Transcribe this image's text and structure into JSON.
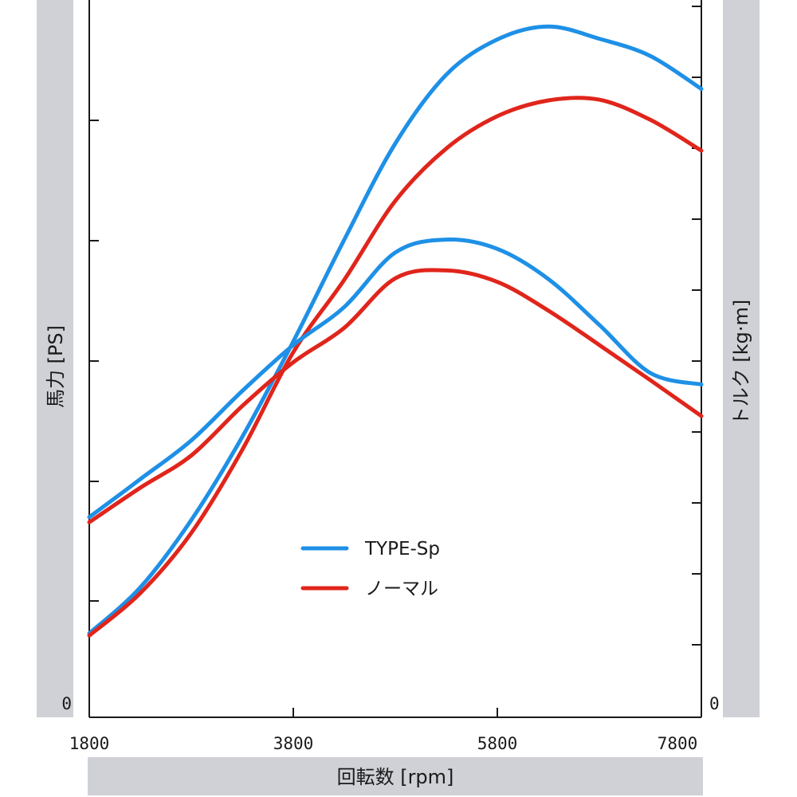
{
  "chart_data": {
    "type": "line",
    "xlabel": "回転数 [rpm]",
    "ylabel_left": "馬力 [PS]",
    "ylabel_right": "トルク [kg·m]",
    "x_ticks": [
      1800,
      3800,
      5800,
      7800
    ],
    "x_range": [
      1800,
      7800
    ],
    "y_left_range": [
      0,
      100
    ],
    "y_right_range": [
      0,
      100
    ],
    "y_left_zero_label": "0",
    "y_right_zero_label": "0",
    "colors": {
      "type_sp": "#1e90e6",
      "normal": "#e0251b"
    },
    "legend": {
      "position": "center-bottom",
      "entries": [
        {
          "name": "TYPE-Sp",
          "color": "#1e90e6"
        },
        {
          "name": "ノーマル",
          "color": "#e0251b"
        }
      ]
    },
    "series": [
      {
        "name": "TYPE-Sp",
        "quantity": "power",
        "axis": "left",
        "color": "#1e90e6",
        "x": [
          1800,
          2300,
          2800,
          3300,
          3800,
          4300,
          4800,
          5300,
          5800,
          6300,
          6800,
          7300,
          7800
        ],
        "y": [
          11.7,
          18.1,
          27.5,
          39.1,
          52.4,
          66.6,
          80.0,
          89.6,
          94.5,
          96.3,
          94.6,
          92.2,
          87.6
        ]
      },
      {
        "name": "ノーマル",
        "quantity": "power",
        "axis": "left",
        "color": "#e0251b",
        "x": [
          1800,
          2300,
          2800,
          3300,
          3800,
          4300,
          4800,
          5300,
          5800,
          6300,
          6800,
          7300,
          7800
        ],
        "y": [
          11.4,
          17.3,
          25.7,
          37.3,
          50.9,
          61.0,
          72.0,
          79.3,
          83.8,
          86.0,
          86.1,
          83.3,
          79.0
        ]
      },
      {
        "name": "TYPE-Sp",
        "quantity": "torque",
        "axis": "right",
        "color": "#1e90e6",
        "x": [
          1800,
          2300,
          2800,
          3300,
          3800,
          4300,
          4800,
          5300,
          5800,
          6300,
          6800,
          7300,
          7800
        ],
        "y": [
          27.9,
          33.2,
          38.6,
          45.5,
          51.9,
          57.2,
          64.8,
          66.6,
          65.3,
          61.1,
          54.7,
          48.0,
          46.4
        ]
      },
      {
        "name": "ノーマル",
        "quantity": "torque",
        "axis": "right",
        "color": "#e0251b",
        "x": [
          1800,
          2300,
          2800,
          3300,
          3800,
          4300,
          4800,
          5300,
          5800,
          6300,
          6800,
          7300,
          7800
        ],
        "y": [
          27.2,
          32.0,
          36.5,
          43.4,
          49.5,
          54.3,
          61.2,
          62.3,
          60.7,
          56.7,
          51.9,
          47.0,
          42.0
        ]
      }
    ]
  }
}
